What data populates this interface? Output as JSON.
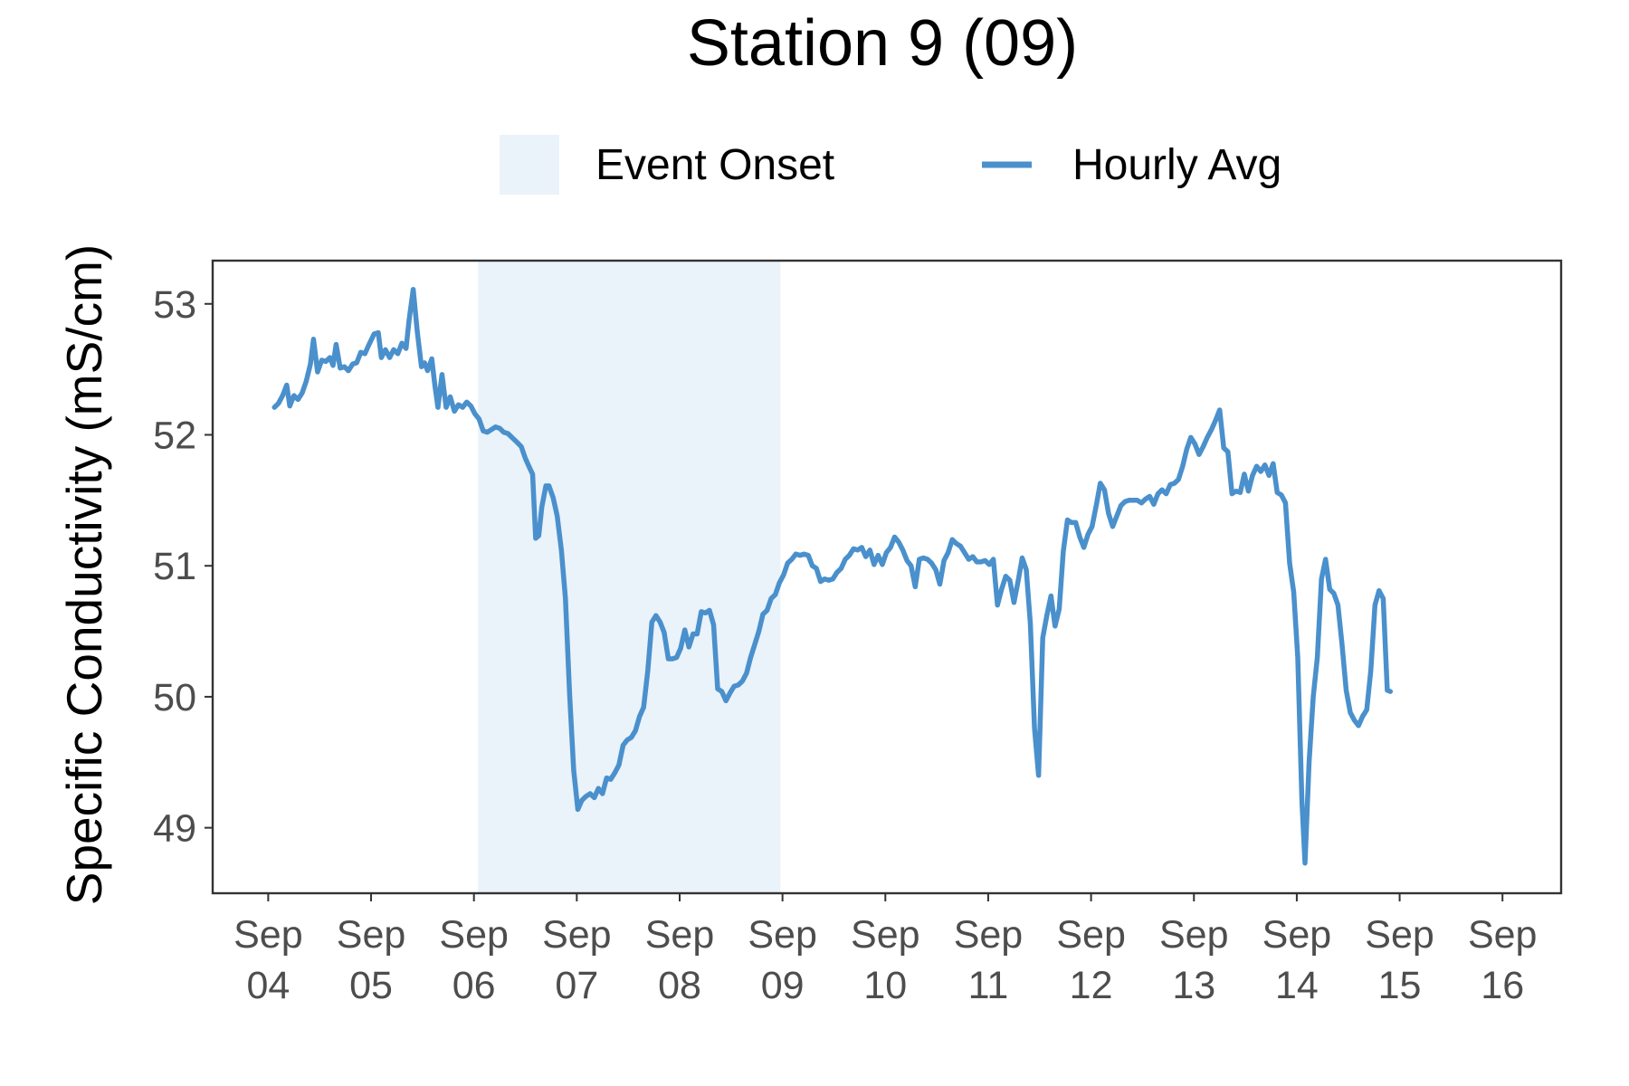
{
  "chart_data": {
    "type": "line",
    "title": "Station 9 (09)",
    "ylabel": "Specific Conductivity (mS/cm)",
    "xlabel": "",
    "x_ticks": [
      {
        "day": 0,
        "label": [
          "Sep",
          "04"
        ]
      },
      {
        "day": 1,
        "label": [
          "Sep",
          "05"
        ]
      },
      {
        "day": 2,
        "label": [
          "Sep",
          "06"
        ]
      },
      {
        "day": 3,
        "label": [
          "Sep",
          "07"
        ]
      },
      {
        "day": 4,
        "label": [
          "Sep",
          "08"
        ]
      },
      {
        "day": 5,
        "label": [
          "Sep",
          "09"
        ]
      },
      {
        "day": 6,
        "label": [
          "Sep",
          "10"
        ]
      },
      {
        "day": 7,
        "label": [
          "Sep",
          "11"
        ]
      },
      {
        "day": 8,
        "label": [
          "Sep",
          "12"
        ]
      },
      {
        "day": 9,
        "label": [
          "Sep",
          "13"
        ]
      },
      {
        "day": 10,
        "label": [
          "Sep",
          "14"
        ]
      },
      {
        "day": 11,
        "label": [
          "Sep",
          "15"
        ]
      },
      {
        "day": 12,
        "label": [
          "Sep",
          "16"
        ]
      }
    ],
    "y_ticks": [
      49,
      50,
      51,
      52,
      53
    ],
    "xlim": [
      -0.54,
      12.57
    ],
    "ylim": [
      48.5,
      53.33
    ],
    "legend": {
      "position": "top",
      "items": [
        {
          "label": "Event Onset",
          "kind": "rect",
          "color": "#eaf2fa"
        },
        {
          "label": "Hourly Avg",
          "kind": "line",
          "color": "#4a90cc"
        }
      ]
    },
    "shaded_region": {
      "name": "Event Onset",
      "x_start": 2.04,
      "x_end": 4.98,
      "color": "#eaf2fa"
    },
    "series": [
      {
        "name": "Hourly Avg",
        "color": "#4a90cc",
        "points": [
          [
            0.06,
            52.21
          ],
          [
            0.1,
            52.24
          ],
          [
            0.14,
            52.3
          ],
          [
            0.18,
            52.38
          ],
          [
            0.21,
            52.22
          ],
          [
            0.25,
            52.3
          ],
          [
            0.29,
            52.27
          ],
          [
            0.33,
            52.32
          ],
          [
            0.37,
            52.41
          ],
          [
            0.41,
            52.54
          ],
          [
            0.44,
            52.73
          ],
          [
            0.48,
            52.48
          ],
          [
            0.52,
            52.57
          ],
          [
            0.56,
            52.56
          ],
          [
            0.6,
            52.59
          ],
          [
            0.63,
            52.53
          ],
          [
            0.66,
            52.69
          ],
          [
            0.7,
            52.51
          ],
          [
            0.74,
            52.52
          ],
          [
            0.78,
            52.49
          ],
          [
            0.82,
            52.54
          ],
          [
            0.86,
            52.55
          ],
          [
            0.9,
            52.63
          ],
          [
            0.94,
            52.62
          ],
          [
            0.98,
            52.69
          ],
          [
            1.03,
            52.77
          ],
          [
            1.07,
            52.78
          ],
          [
            1.1,
            52.59
          ],
          [
            1.14,
            52.65
          ],
          [
            1.18,
            52.59
          ],
          [
            1.22,
            52.65
          ],
          [
            1.26,
            52.62
          ],
          [
            1.3,
            52.7
          ],
          [
            1.34,
            52.66
          ],
          [
            1.37,
            52.88
          ],
          [
            1.41,
            53.11
          ],
          [
            1.45,
            52.78
          ],
          [
            1.49,
            52.52
          ],
          [
            1.52,
            52.55
          ],
          [
            1.55,
            52.49
          ],
          [
            1.59,
            52.58
          ],
          [
            1.62,
            52.38
          ],
          [
            1.65,
            52.21
          ],
          [
            1.69,
            52.46
          ],
          [
            1.73,
            52.21
          ],
          [
            1.77,
            52.29
          ],
          [
            1.81,
            52.18
          ],
          [
            1.85,
            52.23
          ],
          [
            1.89,
            52.21
          ],
          [
            1.93,
            52.25
          ],
          [
            1.97,
            52.22
          ],
          [
            2.01,
            52.16
          ],
          [
            2.05,
            52.12
          ],
          [
            2.09,
            52.03
          ],
          [
            2.13,
            52.02
          ],
          [
            2.17,
            52.04
          ],
          [
            2.21,
            52.06
          ],
          [
            2.25,
            52.05
          ],
          [
            2.29,
            52.02
          ],
          [
            2.33,
            52.01
          ],
          [
            2.37,
            51.98
          ],
          [
            2.41,
            51.95
          ],
          [
            2.46,
            51.91
          ],
          [
            2.5,
            51.82
          ],
          [
            2.54,
            51.75
          ],
          [
            2.57,
            51.7
          ],
          [
            2.6,
            51.21
          ],
          [
            2.63,
            51.23
          ],
          [
            2.66,
            51.45
          ],
          [
            2.7,
            51.61
          ],
          [
            2.73,
            51.61
          ],
          [
            2.77,
            51.52
          ],
          [
            2.81,
            51.38
          ],
          [
            2.85,
            51.12
          ],
          [
            2.89,
            50.75
          ],
          [
            2.93,
            50.02
          ],
          [
            2.97,
            49.44
          ],
          [
            3.01,
            49.14
          ],
          [
            3.05,
            49.21
          ],
          [
            3.09,
            49.24
          ],
          [
            3.13,
            49.26
          ],
          [
            3.17,
            49.23
          ],
          [
            3.21,
            49.3
          ],
          [
            3.25,
            49.26
          ],
          [
            3.29,
            49.38
          ],
          [
            3.33,
            49.37
          ],
          [
            3.37,
            49.42
          ],
          [
            3.41,
            49.48
          ],
          [
            3.45,
            49.63
          ],
          [
            3.49,
            49.67
          ],
          [
            3.53,
            49.69
          ],
          [
            3.57,
            49.74
          ],
          [
            3.61,
            49.85
          ],
          [
            3.65,
            49.92
          ],
          [
            3.69,
            50.2
          ],
          [
            3.73,
            50.57
          ],
          [
            3.77,
            50.62
          ],
          [
            3.81,
            50.57
          ],
          [
            3.85,
            50.49
          ],
          [
            3.89,
            50.29
          ],
          [
            3.93,
            50.29
          ],
          [
            3.97,
            50.3
          ],
          [
            4.01,
            50.37
          ],
          [
            4.05,
            50.51
          ],
          [
            4.09,
            50.38
          ],
          [
            4.13,
            50.48
          ],
          [
            4.17,
            50.48
          ],
          [
            4.21,
            50.65
          ],
          [
            4.25,
            50.64
          ],
          [
            4.29,
            50.66
          ],
          [
            4.33,
            50.55
          ],
          [
            4.37,
            50.06
          ],
          [
            4.41,
            50.04
          ],
          [
            4.45,
            49.97
          ],
          [
            4.49,
            50.03
          ],
          [
            4.53,
            50.08
          ],
          [
            4.57,
            50.09
          ],
          [
            4.61,
            50.12
          ],
          [
            4.65,
            50.18
          ],
          [
            4.69,
            50.3
          ],
          [
            4.73,
            50.4
          ],
          [
            4.77,
            50.5
          ],
          [
            4.81,
            50.63
          ],
          [
            4.85,
            50.66
          ],
          [
            4.89,
            50.75
          ],
          [
            4.93,
            50.78
          ],
          [
            4.97,
            50.87
          ],
          [
            5.01,
            50.93
          ],
          [
            5.05,
            51.02
          ],
          [
            5.09,
            51.05
          ],
          [
            5.13,
            51.09
          ],
          [
            5.17,
            51.08
          ],
          [
            5.21,
            51.09
          ],
          [
            5.25,
            51.08
          ],
          [
            5.29,
            51.0
          ],
          [
            5.33,
            50.98
          ],
          [
            5.37,
            50.88
          ],
          [
            5.41,
            50.9
          ],
          [
            5.45,
            50.89
          ],
          [
            5.49,
            50.9
          ],
          [
            5.53,
            50.95
          ],
          [
            5.57,
            50.98
          ],
          [
            5.61,
            51.05
          ],
          [
            5.65,
            51.08
          ],
          [
            5.69,
            51.13
          ],
          [
            5.73,
            51.12
          ],
          [
            5.77,
            51.14
          ],
          [
            5.81,
            51.07
          ],
          [
            5.85,
            51.12
          ],
          [
            5.89,
            51.01
          ],
          [
            5.93,
            51.08
          ],
          [
            5.97,
            51.01
          ],
          [
            6.01,
            51.1
          ],
          [
            6.05,
            51.14
          ],
          [
            6.09,
            51.22
          ],
          [
            6.13,
            51.18
          ],
          [
            6.17,
            51.12
          ],
          [
            6.21,
            51.04
          ],
          [
            6.25,
            51.0
          ],
          [
            6.29,
            50.84
          ],
          [
            6.33,
            51.05
          ],
          [
            6.37,
            51.06
          ],
          [
            6.41,
            51.05
          ],
          [
            6.45,
            51.02
          ],
          [
            6.49,
            50.97
          ],
          [
            6.53,
            50.86
          ],
          [
            6.57,
            51.04
          ],
          [
            6.61,
            51.1
          ],
          [
            6.65,
            51.2
          ],
          [
            6.69,
            51.17
          ],
          [
            6.73,
            51.15
          ],
          [
            6.77,
            51.1
          ],
          [
            6.81,
            51.05
          ],
          [
            6.85,
            51.07
          ],
          [
            6.89,
            51.03
          ],
          [
            6.93,
            51.03
          ],
          [
            6.97,
            51.04
          ],
          [
            7.01,
            51.01
          ],
          [
            7.05,
            51.05
          ],
          [
            7.09,
            50.7
          ],
          [
            7.13,
            50.82
          ],
          [
            7.17,
            50.92
          ],
          [
            7.21,
            50.89
          ],
          [
            7.25,
            50.72
          ],
          [
            7.29,
            50.88
          ],
          [
            7.33,
            51.06
          ],
          [
            7.37,
            50.97
          ],
          [
            7.41,
            50.56
          ],
          [
            7.45,
            49.76
          ],
          [
            7.49,
            49.4
          ],
          [
            7.53,
            50.45
          ],
          [
            7.57,
            50.62
          ],
          [
            7.61,
            50.77
          ],
          [
            7.65,
            50.54
          ],
          [
            7.69,
            50.67
          ],
          [
            7.73,
            51.11
          ],
          [
            7.77,
            51.35
          ],
          [
            7.81,
            51.33
          ],
          [
            7.85,
            51.33
          ],
          [
            7.89,
            51.22
          ],
          [
            7.93,
            51.14
          ],
          [
            7.97,
            51.24
          ],
          [
            8.01,
            51.3
          ],
          [
            8.05,
            51.46
          ],
          [
            8.09,
            51.63
          ],
          [
            8.13,
            51.58
          ],
          [
            8.17,
            51.4
          ],
          [
            8.21,
            51.3
          ],
          [
            8.25,
            51.38
          ],
          [
            8.29,
            51.46
          ],
          [
            8.33,
            51.49
          ],
          [
            8.37,
            51.5
          ],
          [
            8.41,
            51.5
          ],
          [
            8.45,
            51.5
          ],
          [
            8.49,
            51.48
          ],
          [
            8.53,
            51.51
          ],
          [
            8.57,
            51.53
          ],
          [
            8.61,
            51.47
          ],
          [
            8.65,
            51.55
          ],
          [
            8.69,
            51.58
          ],
          [
            8.73,
            51.55
          ],
          [
            8.77,
            51.62
          ],
          [
            8.81,
            51.63
          ],
          [
            8.85,
            51.66
          ],
          [
            8.89,
            51.76
          ],
          [
            8.93,
            51.89
          ],
          [
            8.97,
            51.98
          ],
          [
            9.01,
            51.93
          ],
          [
            9.05,
            51.85
          ],
          [
            9.09,
            51.91
          ],
          [
            9.13,
            51.98
          ],
          [
            9.17,
            52.04
          ],
          [
            9.21,
            52.11
          ],
          [
            9.25,
            52.19
          ],
          [
            9.29,
            51.9
          ],
          [
            9.33,
            51.87
          ],
          [
            9.37,
            51.55
          ],
          [
            9.41,
            51.57
          ],
          [
            9.45,
            51.56
          ],
          [
            9.49,
            51.7
          ],
          [
            9.53,
            51.57
          ],
          [
            9.57,
            51.69
          ],
          [
            9.61,
            51.76
          ],
          [
            9.65,
            51.72
          ],
          [
            9.69,
            51.77
          ],
          [
            9.73,
            51.69
          ],
          [
            9.77,
            51.78
          ],
          [
            9.81,
            51.56
          ],
          [
            9.85,
            51.54
          ],
          [
            9.89,
            51.48
          ],
          [
            9.93,
            51.02
          ],
          [
            9.97,
            50.8
          ],
          [
            10.01,
            50.3
          ],
          [
            10.05,
            49.2
          ],
          [
            10.08,
            48.73
          ],
          [
            10.12,
            49.5
          ],
          [
            10.16,
            50.0
          ],
          [
            10.2,
            50.3
          ],
          [
            10.24,
            50.9
          ],
          [
            10.28,
            51.05
          ],
          [
            10.32,
            50.82
          ],
          [
            10.36,
            50.79
          ],
          [
            10.4,
            50.7
          ],
          [
            10.44,
            50.4
          ],
          [
            10.48,
            50.05
          ],
          [
            10.52,
            49.88
          ],
          [
            10.56,
            49.82
          ],
          [
            10.6,
            49.78
          ],
          [
            10.64,
            49.85
          ],
          [
            10.68,
            49.9
          ],
          [
            10.72,
            50.2
          ],
          [
            10.76,
            50.7
          ],
          [
            10.8,
            50.81
          ],
          [
            10.84,
            50.75
          ],
          [
            10.88,
            50.05
          ],
          [
            10.91,
            50.04
          ]
        ]
      }
    ]
  }
}
